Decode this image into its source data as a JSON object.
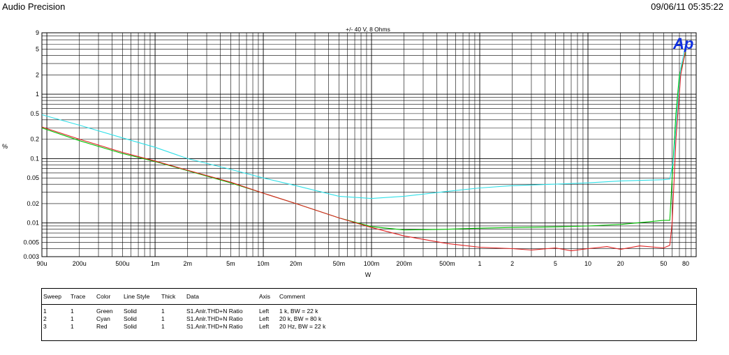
{
  "header": {
    "app_title": "Audio Precision",
    "timestamp": "09/06/11 05:35:22"
  },
  "logo": {
    "text": "Ap",
    "color": "#1030e0"
  },
  "chart_data": {
    "type": "line",
    "title": "+/- 40 V, 8 Ohms",
    "xlabel": "W",
    "ylabel": "%",
    "x_scale": "log",
    "y_scale": "log",
    "xlim": [
      9e-05,
      100
    ],
    "ylim": [
      0.003,
      9
    ],
    "grid": true,
    "x_ticks": [
      {
        "v": 9e-05,
        "label": "90u"
      },
      {
        "v": 0.0002,
        "label": "200u"
      },
      {
        "v": 0.0005,
        "label": "500u"
      },
      {
        "v": 0.001,
        "label": "1m"
      },
      {
        "v": 0.002,
        "label": "2m"
      },
      {
        "v": 0.005,
        "label": "5m"
      },
      {
        "v": 0.01,
        "label": "10m"
      },
      {
        "v": 0.02,
        "label": "20m"
      },
      {
        "v": 0.05,
        "label": "50m"
      },
      {
        "v": 0.1,
        "label": "100m"
      },
      {
        "v": 0.2,
        "label": "200m"
      },
      {
        "v": 0.5,
        "label": "500m"
      },
      {
        "v": 1,
        "label": "1"
      },
      {
        "v": 2,
        "label": "2"
      },
      {
        "v": 5,
        "label": "5"
      },
      {
        "v": 10,
        "label": "10"
      },
      {
        "v": 20,
        "label": "20"
      },
      {
        "v": 50,
        "label": "50"
      },
      {
        "v": 80,
        "label": "80"
      }
    ],
    "y_ticks": [
      {
        "v": 9,
        "label": "9"
      },
      {
        "v": 5,
        "label": "5"
      },
      {
        "v": 2,
        "label": "2"
      },
      {
        "v": 1,
        "label": "1"
      },
      {
        "v": 0.5,
        "label": "0.5"
      },
      {
        "v": 0.2,
        "label": "0.2"
      },
      {
        "v": 0.1,
        "label": "0.1"
      },
      {
        "v": 0.05,
        "label": "0.05"
      },
      {
        "v": 0.02,
        "label": "0.02"
      },
      {
        "v": 0.01,
        "label": "0.01"
      },
      {
        "v": 0.005,
        "label": "0.005"
      },
      {
        "v": 0.003,
        "label": "0.003"
      }
    ],
    "series": [
      {
        "color": "#00c000",
        "points": [
          [
            9e-05,
            0.3
          ],
          [
            0.0002,
            0.19
          ],
          [
            0.0005,
            0.12
          ],
          [
            0.001,
            0.09
          ],
          [
            0.002,
            0.065
          ],
          [
            0.005,
            0.042
          ],
          [
            0.01,
            0.029
          ],
          [
            0.02,
            0.02
          ],
          [
            0.05,
            0.012
          ],
          [
            0.1,
            0.0088
          ],
          [
            0.2,
            0.0078
          ],
          [
            0.5,
            0.008
          ],
          [
            1,
            0.0083
          ],
          [
            2,
            0.0085
          ],
          [
            5,
            0.0087
          ],
          [
            10,
            0.009
          ],
          [
            20,
            0.0095
          ],
          [
            50,
            0.011
          ],
          [
            57,
            0.011
          ],
          [
            60,
            0.05
          ],
          [
            65,
            0.5
          ],
          [
            70,
            2.0
          ],
          [
            80,
            4.5
          ]
        ]
      },
      {
        "color": "#30e0e8",
        "points": [
          [
            9e-05,
            0.48
          ],
          [
            0.0002,
            0.33
          ],
          [
            0.0005,
            0.21
          ],
          [
            0.001,
            0.15
          ],
          [
            0.002,
            0.1
          ],
          [
            0.005,
            0.068
          ],
          [
            0.01,
            0.05
          ],
          [
            0.02,
            0.038
          ],
          [
            0.05,
            0.026
          ],
          [
            0.1,
            0.024
          ],
          [
            0.2,
            0.026
          ],
          [
            0.5,
            0.031
          ],
          [
            1,
            0.035
          ],
          [
            2,
            0.038
          ],
          [
            5,
            0.04
          ],
          [
            10,
            0.042
          ],
          [
            20,
            0.045
          ],
          [
            50,
            0.047
          ],
          [
            57,
            0.048
          ],
          [
            62,
            0.1
          ],
          [
            67,
            0.6
          ],
          [
            72,
            2.5
          ],
          [
            80,
            6.0
          ]
        ]
      },
      {
        "color": "#e02020",
        "points": [
          [
            9e-05,
            0.31
          ],
          [
            0.0002,
            0.2
          ],
          [
            0.0005,
            0.125
          ],
          [
            0.001,
            0.092
          ],
          [
            0.002,
            0.066
          ],
          [
            0.005,
            0.043
          ],
          [
            0.01,
            0.029
          ],
          [
            0.02,
            0.02
          ],
          [
            0.05,
            0.012
          ],
          [
            0.1,
            0.0085
          ],
          [
            0.2,
            0.0063
          ],
          [
            0.5,
            0.0048
          ],
          [
            1,
            0.0042
          ],
          [
            2,
            0.004
          ],
          [
            3,
            0.0038
          ],
          [
            5,
            0.0041
          ],
          [
            7,
            0.0037
          ],
          [
            10,
            0.004
          ],
          [
            15,
            0.0043
          ],
          [
            20,
            0.0039
          ],
          [
            30,
            0.0044
          ],
          [
            50,
            0.0041
          ],
          [
            57,
            0.0045
          ],
          [
            60,
            0.01
          ],
          [
            65,
            0.2
          ],
          [
            72,
            2.0
          ],
          [
            80,
            5.0
          ]
        ]
      }
    ]
  },
  "legend_table": {
    "headers": [
      "Sweep",
      "Trace",
      "Color",
      "Line Style",
      "Thick",
      "Data",
      "Axis",
      "Comment"
    ],
    "rows": [
      [
        "1",
        "1",
        "Green",
        "Solid",
        "1",
        "S1.Anlr.THD+N Ratio",
        "Left",
        "1 k, BW = 22 k"
      ],
      [
        "2",
        "1",
        "Cyan",
        "Solid",
        "1",
        "S1.Anlr.THD+N Ratio",
        "Left",
        "20 k, BW = 80 k"
      ],
      [
        "3",
        "1",
        "Red",
        "Solid",
        "1",
        "S1.Anlr.THD+N Ratio",
        "Left",
        "20 Hz, BW = 22 k"
      ]
    ]
  }
}
